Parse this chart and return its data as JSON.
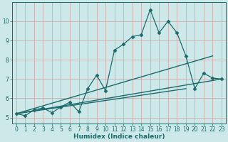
{
  "xlabel": "Humidex (Indice chaleur)",
  "bg_color": "#cce8e8",
  "grid_color": "#c0d8d8",
  "line_color": "#1a6b6b",
  "xlim": [
    -0.5,
    23.5
  ],
  "ylim": [
    4.7,
    11.0
  ],
  "yticks": [
    5,
    6,
    7,
    8,
    9,
    10
  ],
  "xticks": [
    0,
    1,
    2,
    3,
    4,
    5,
    6,
    7,
    8,
    9,
    10,
    11,
    12,
    13,
    14,
    15,
    16,
    17,
    18,
    19,
    20,
    21,
    22,
    23
  ],
  "series1_x": [
    0,
    1,
    2,
    3,
    4,
    5,
    6,
    7,
    8,
    9,
    10,
    11,
    12,
    13,
    14,
    15,
    16,
    17,
    18,
    19,
    20,
    21,
    22,
    23
  ],
  "series1_y": [
    5.2,
    5.1,
    5.4,
    5.5,
    5.25,
    5.55,
    5.8,
    5.3,
    6.5,
    7.2,
    6.4,
    8.5,
    8.8,
    9.2,
    9.3,
    10.6,
    9.4,
    10.0,
    9.4,
    8.2,
    6.5,
    7.3,
    7.05,
    7.0
  ],
  "series2_x": [
    0,
    22
  ],
  "series2_y": [
    5.2,
    8.2
  ],
  "series3_x": [
    0,
    23
  ],
  "series3_y": [
    5.2,
    7.0
  ],
  "series4_x": [
    0,
    19
  ],
  "series4_y": [
    5.2,
    6.5
  ]
}
